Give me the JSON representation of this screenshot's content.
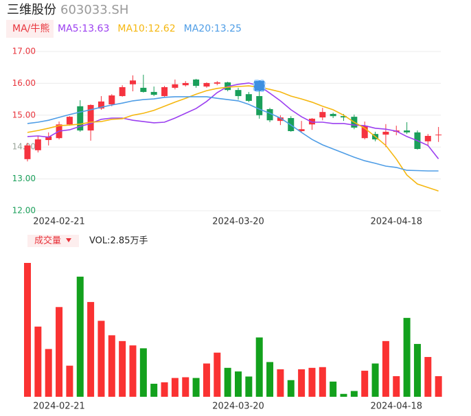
{
  "header": {
    "name": "三维股份",
    "code": "603033.SH"
  },
  "chart_data": [
    {
      "type": "candlestick",
      "legend_label": "MA/牛熊",
      "categories": [
        null,
        null,
        null,
        "2024-02-21",
        null,
        null,
        null,
        null,
        null,
        null,
        null,
        null,
        null,
        null,
        null,
        null,
        null,
        null,
        null,
        null,
        "2024-03-20",
        null,
        null,
        null,
        null,
        null,
        null,
        null,
        null,
        null,
        null,
        null,
        null,
        null,
        null,
        "2024-04-18",
        null,
        null,
        null,
        null
      ],
      "open": [
        13.62,
        13.9,
        14.22,
        14.28,
        14.71,
        15.28,
        14.52,
        15.21,
        15.34,
        15.6,
        15.97,
        15.86,
        15.73,
        15.6,
        15.86,
        15.94,
        16.12,
        15.9,
        15.99,
        16.03,
        15.79,
        15.66,
        15.6,
        15.19,
        14.82,
        14.91,
        14.5,
        14.71,
        14.93,
        15.04,
        14.97,
        14.95,
        14.28,
        14.41,
        14.39,
        14.48,
        14.52,
        14.46,
        14.18,
        14.37
      ],
      "high": [
        14.13,
        14.35,
        14.46,
        14.8,
        14.97,
        15.47,
        15.34,
        15.6,
        15.66,
        15.94,
        16.25,
        16.27,
        15.9,
        15.92,
        16.12,
        16.07,
        16.14,
        16.03,
        16.07,
        16.05,
        15.86,
        15.73,
        15.92,
        15.23,
        15.0,
        14.97,
        14.82,
        14.91,
        15.23,
        15.08,
        15.04,
        15.02,
        14.8,
        14.48,
        14.72,
        14.67,
        14.78,
        14.52,
        14.41,
        14.63
      ],
      "low": [
        13.55,
        13.83,
        14.05,
        14.24,
        14.67,
        14.48,
        14.2,
        15.17,
        15.28,
        15.58,
        15.75,
        15.71,
        15.6,
        15.58,
        15.81,
        15.9,
        15.86,
        15.86,
        15.94,
        15.75,
        15.49,
        15.41,
        14.89,
        14.78,
        14.69,
        14.48,
        14.46,
        14.54,
        14.84,
        14.91,
        14.82,
        14.56,
        14.24,
        14.18,
        14.0,
        14.37,
        14.41,
        13.92,
        14.03,
        14.16
      ],
      "close": [
        14.05,
        14.24,
        14.33,
        14.71,
        14.95,
        14.52,
        15.32,
        15.43,
        15.62,
        15.88,
        16.09,
        15.73,
        15.64,
        15.88,
        15.97,
        16.01,
        15.92,
        16.01,
        16.03,
        15.79,
        15.6,
        15.45,
        15.0,
        14.84,
        14.93,
        14.5,
        14.56,
        14.89,
        15.1,
        14.97,
        14.93,
        14.61,
        14.67,
        14.24,
        14.48,
        14.52,
        14.46,
        13.94,
        14.35,
        14.39
      ],
      "up_color": "#f5333f",
      "down_color": "#1a9f5a",
      "series": [
        {
          "name": "MA5:13.63",
          "color": "#9b3ff0",
          "values": [
            14.33,
            14.35,
            14.31,
            14.5,
            14.54,
            14.65,
            14.74,
            14.87,
            14.91,
            14.91,
            14.84,
            14.8,
            14.76,
            14.78,
            14.91,
            15.06,
            15.21,
            15.43,
            15.71,
            15.9,
            15.97,
            16.01,
            15.92,
            15.69,
            15.45,
            15.17,
            14.95,
            14.78,
            14.78,
            14.74,
            14.74,
            14.69,
            14.67,
            14.59,
            14.56,
            14.5,
            14.33,
            14.2,
            14.05,
            13.63
          ]
        },
        {
          "name": "MA10:12.62",
          "color": "#f5b70f",
          "values": [
            14.46,
            14.52,
            14.59,
            14.67,
            14.69,
            14.72,
            14.78,
            14.8,
            14.87,
            14.89,
            15.0,
            15.06,
            15.15,
            15.28,
            15.41,
            15.53,
            15.66,
            15.77,
            15.84,
            15.88,
            15.9,
            15.92,
            15.88,
            15.81,
            15.73,
            15.6,
            15.51,
            15.41,
            15.28,
            15.17,
            15.0,
            14.78,
            14.59,
            14.33,
            14.05,
            13.62,
            13.12,
            12.84,
            12.73,
            12.62
          ]
        },
        {
          "name": "MA20:13.25",
          "color": "#4e9de6",
          "values": [
            14.74,
            14.78,
            14.84,
            14.93,
            15.02,
            15.1,
            15.17,
            15.25,
            15.32,
            15.38,
            15.45,
            15.49,
            15.51,
            15.56,
            15.58,
            15.58,
            15.58,
            15.58,
            15.53,
            15.49,
            15.45,
            15.34,
            15.19,
            15.06,
            14.91,
            14.69,
            14.46,
            14.24,
            14.07,
            13.94,
            13.81,
            13.68,
            13.57,
            13.49,
            13.4,
            13.36,
            13.27,
            13.26,
            13.25,
            13.25
          ]
        }
      ],
      "ylim": [
        12,
        17
      ],
      "yticks": [
        {
          "value": 17,
          "label": "17.00"
        },
        {
          "value": 16,
          "label": "16.00"
        },
        {
          "value": 15,
          "label": "15.00"
        },
        {
          "value": 14,
          "label": "14.00"
        },
        {
          "value": 13,
          "label": "13.00"
        },
        {
          "value": 12,
          "label": "12.00"
        }
      ],
      "ytick_colors": [
        "#e8343c",
        "#e8343c",
        "#e8343c",
        "#9aa59a",
        "#1a9f5a",
        "#1a9f5a"
      ],
      "grid": true
    },
    {
      "type": "volume",
      "label": "成交量",
      "value_label": "VOL:2.85万手",
      "categories": [
        null,
        null,
        null,
        "2024-02-21",
        null,
        null,
        null,
        null,
        null,
        null,
        null,
        null,
        null,
        null,
        null,
        null,
        null,
        null,
        null,
        null,
        "2024-03-20",
        null,
        null,
        null,
        null,
        null,
        null,
        null,
        null,
        null,
        null,
        null,
        null,
        null,
        null,
        "2024-04-18",
        null,
        null,
        null,
        null
      ],
      "values": [
        18.5,
        9.7,
        6.6,
        12.4,
        4.3,
        16.6,
        13.1,
        10.5,
        8.5,
        7.7,
        7.1,
        6.7,
        1.8,
        2.0,
        2.6,
        2.7,
        2.6,
        4.6,
        6.1,
        4.0,
        3.5,
        2.8,
        8.2,
        4.8,
        3.8,
        2.3,
        3.8,
        4.0,
        4.1,
        2.1,
        0.4,
        0.8,
        3.6,
        4.6,
        7.7,
        2.85,
        10.9,
        7.3,
        5.5,
        2.85
      ]
    }
  ]
}
